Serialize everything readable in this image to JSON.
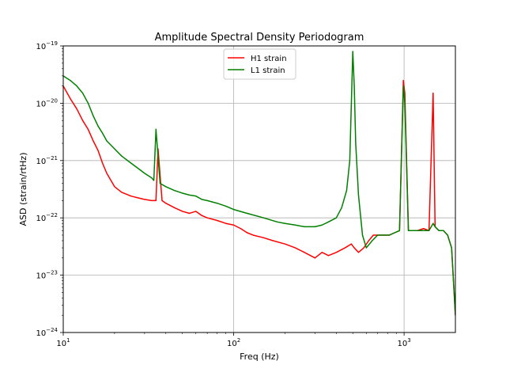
{
  "chart_data": {
    "type": "line",
    "title": "Amplitude Spectral Density Periodogram",
    "xlabel": "Freq (Hz)",
    "ylabel": "ASD (strain/rtHz)",
    "x_scale": "log",
    "y_scale": "log",
    "xlim": [
      10,
      2000
    ],
    "ylim": [
      1e-24,
      1e-19
    ],
    "x_ticks": [
      {
        "value": 10,
        "label_base": "10",
        "label_exp": "1"
      },
      {
        "value": 100,
        "label_base": "10",
        "label_exp": "2"
      },
      {
        "value": 1000,
        "label_base": "10",
        "label_exp": "3"
      }
    ],
    "y_ticks": [
      {
        "value": 1e-24,
        "label_base": "10",
        "label_exp": "−24"
      },
      {
        "value": 1e-23,
        "label_base": "10",
        "label_exp": "−23"
      },
      {
        "value": 1e-22,
        "label_base": "10",
        "label_exp": "−22"
      },
      {
        "value": 1e-21,
        "label_base": "10",
        "label_exp": "−21"
      },
      {
        "value": 1e-20,
        "label_base": "10",
        "label_exp": "−20"
      },
      {
        "value": 1e-19,
        "label_base": "10",
        "label_exp": "−19"
      }
    ],
    "grid": true,
    "legend_position": "top-center",
    "series": [
      {
        "name": "H1 strain",
        "color": "#ff0000",
        "x": [
          10,
          11,
          12,
          13,
          14,
          15,
          16,
          17,
          18,
          20,
          22,
          25,
          28,
          30,
          33,
          35,
          36,
          38,
          40,
          45,
          50,
          55,
          60,
          65,
          70,
          80,
          90,
          100,
          110,
          120,
          130,
          150,
          170,
          200,
          230,
          260,
          300,
          330,
          360,
          400,
          450,
          490,
          510,
          540,
          580,
          620,
          660,
          700,
          760,
          820,
          880,
          940,
          990,
          1010,
          1060,
          1120,
          1200,
          1300,
          1400,
          1480,
          1520,
          1600,
          1700,
          1800,
          1900,
          2000
        ],
        "y": [
          2e-20,
          1.2e-20,
          8e-21,
          5e-21,
          3.5e-21,
          2.2e-21,
          1.5e-21,
          9e-22,
          6e-22,
          3.5e-22,
          2.8e-22,
          2.4e-22,
          2.2e-22,
          2.1e-22,
          2e-22,
          2e-22,
          1.6e-21,
          2e-22,
          1.8e-22,
          1.5e-22,
          1.3e-22,
          1.2e-22,
          1.3e-22,
          1.1e-22,
          1e-22,
          9e-23,
          8e-23,
          7.5e-23,
          6.5e-23,
          5.5e-23,
          5e-23,
          4.5e-23,
          4e-23,
          3.5e-23,
          3e-23,
          2.5e-23,
          2e-23,
          2.5e-23,
          2.2e-23,
          2.5e-23,
          3e-23,
          3.5e-23,
          3e-23,
          2.5e-23,
          3e-23,
          4e-23,
          5e-23,
          5e-23,
          5e-23,
          5e-23,
          5.5e-23,
          6e-23,
          2.5e-20,
          1.5e-20,
          6e-23,
          6e-23,
          6e-23,
          6.5e-23,
          6e-23,
          1.5e-20,
          7e-23,
          6e-23,
          6e-23,
          5e-23,
          3e-23,
          2e-24
        ]
      },
      {
        "name": "L1 strain",
        "color": "#008000",
        "x": [
          10,
          11,
          12,
          13,
          14,
          15,
          16,
          17,
          18,
          20,
          22,
          25,
          28,
          30,
          33,
          34,
          35,
          37,
          40,
          45,
          50,
          55,
          60,
          65,
          70,
          80,
          90,
          100,
          120,
          150,
          180,
          200,
          230,
          260,
          300,
          330,
          360,
          400,
          430,
          460,
          480,
          500,
          510,
          520,
          540,
          570,
          600,
          650,
          700,
          760,
          820,
          880,
          940,
          990,
          1010,
          1060,
          1120,
          1200,
          1300,
          1400,
          1480,
          1520,
          1600,
          1700,
          1800,
          1900,
          2000
        ],
        "y": [
          3e-20,
          2.5e-20,
          2e-20,
          1.5e-20,
          1e-20,
          6e-21,
          4e-21,
          3e-21,
          2.2e-21,
          1.6e-21,
          1.2e-21,
          9e-22,
          7e-22,
          6e-22,
          5e-22,
          4.5e-22,
          3.5e-21,
          4e-22,
          3.5e-22,
          3e-22,
          2.7e-22,
          2.5e-22,
          2.4e-22,
          2.1e-22,
          2e-22,
          1.8e-22,
          1.6e-22,
          1.4e-22,
          1.2e-22,
          1e-22,
          8.5e-23,
          8e-23,
          7.5e-23,
          7e-23,
          7e-23,
          7.5e-23,
          8.5e-23,
          1e-22,
          1.5e-22,
          3e-22,
          1e-21,
          8e-20,
          2e-20,
          2e-21,
          2.5e-22,
          5e-23,
          3e-23,
          4e-23,
          5e-23,
          5e-23,
          5e-23,
          5.5e-23,
          6e-23,
          2e-20,
          1e-20,
          6e-23,
          6e-23,
          6e-23,
          6e-23,
          6e-23,
          8e-23,
          7e-23,
          6e-23,
          6e-23,
          5e-23,
          3e-23,
          2e-24
        ]
      }
    ]
  }
}
